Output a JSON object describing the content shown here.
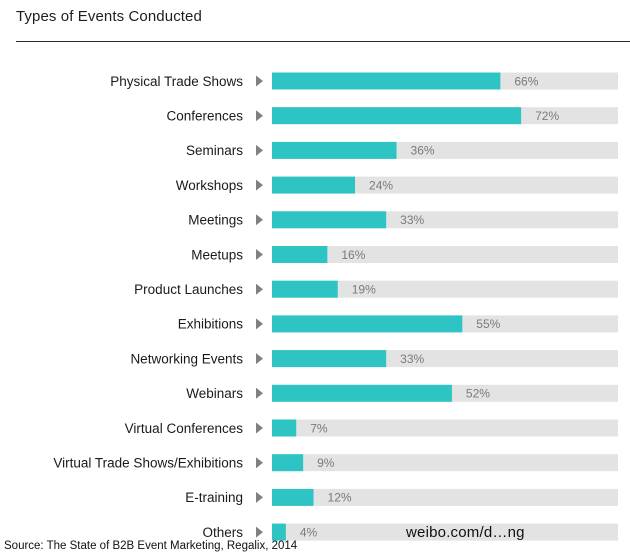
{
  "header": {
    "title": "Types of Events Conducted"
  },
  "footer": {
    "source": "Source: The State of B2B Event Marketing, Regalix, 2014",
    "watermark": "weibo.com/d…ng"
  },
  "colors": {
    "bar_fill": "#2ec4c4",
    "bar_track": "#e3e3e3",
    "arrow": "#808080",
    "value_text": "#7a7a7a"
  },
  "chart_data": {
    "type": "bar",
    "orientation": "horizontal",
    "title": "Types of Events Conducted",
    "xlabel": "",
    "ylabel": "",
    "xlim": [
      0,
      100
    ],
    "categories": [
      "Physical Trade Shows",
      "Conferences",
      "Seminars",
      "Workshops",
      "Meetings",
      "Meetups",
      "Product Launches",
      "Exhibitions",
      "Networking Events",
      "Webinars",
      "Virtual Conferences",
      "Virtual Trade Shows/Exhibitions",
      "E-training",
      "Others"
    ],
    "values": [
      66,
      72,
      36,
      24,
      33,
      16,
      19,
      55,
      33,
      52,
      7,
      9,
      12,
      4
    ],
    "value_labels": [
      "66%",
      "72%",
      "36%",
      "24%",
      "33%",
      "16%",
      "19%",
      "55%",
      "33%",
      "52%",
      "7%",
      "9%",
      "12%",
      "4%"
    ]
  }
}
